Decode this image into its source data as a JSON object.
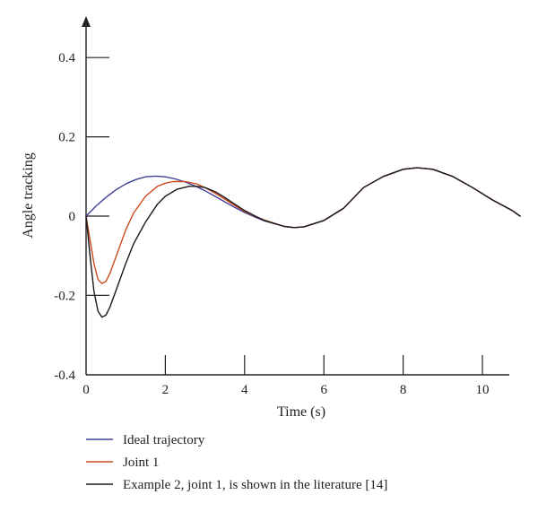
{
  "chart_data": {
    "type": "line",
    "xlabel": "Time (s)",
    "ylabel": "Angle tracking",
    "xlim": [
      0,
      11
    ],
    "ylim": [
      -0.4,
      0.45
    ],
    "x_ticks": [
      0,
      2,
      4,
      6,
      8,
      10
    ],
    "x_tick_labels": [
      "0",
      "2",
      "4",
      "6",
      "8",
      "10"
    ],
    "y_ticks": [
      -0.4,
      -0.2,
      0,
      0.2,
      0.4
    ],
    "y_tick_labels": [
      "-0.4",
      "-0.2",
      "0",
      "0.2",
      "0.4"
    ],
    "grid": false,
    "legend_position": "bottom",
    "series": [
      {
        "name": "Ideal trajectory",
        "color": "#3f3f9a",
        "x": [
          0,
          0.25,
          0.5,
          0.75,
          1.0,
          1.25,
          1.5,
          1.75,
          2.0,
          2.25,
          2.5,
          2.75,
          3.0,
          3.25,
          3.5,
          3.75,
          4.0,
          4.25,
          4.5,
          5.0,
          5.25,
          5.5,
          6.0,
          6.5,
          7.0,
          7.5,
          8.0,
          8.35,
          8.75,
          9.25,
          9.75,
          10.25,
          10.75,
          11.0
        ],
        "values": [
          0.0,
          0.025,
          0.047,
          0.066,
          0.081,
          0.092,
          0.099,
          0.101,
          0.099,
          0.094,
          0.086,
          0.076,
          0.064,
          0.05,
          0.036,
          0.022,
          0.009,
          -0.002,
          -0.012,
          -0.026,
          -0.029,
          -0.027,
          -0.011,
          0.02,
          0.072,
          0.1,
          0.118,
          0.122,
          0.118,
          0.1,
          0.072,
          0.041,
          0.014,
          0.0
        ]
      },
      {
        "name": "Joint 1",
        "color": "#cc4a1e",
        "x": [
          0,
          0.1,
          0.2,
          0.3,
          0.4,
          0.5,
          0.6,
          0.8,
          1.0,
          1.2,
          1.5,
          1.8,
          2.0,
          2.2,
          2.5,
          2.8,
          3.0,
          3.25,
          3.5,
          3.75,
          4.0,
          4.25,
          4.5,
          5.0,
          5.25,
          5.5,
          6.0,
          6.5,
          7.0,
          7.5,
          8.0,
          8.35,
          8.75,
          9.25,
          9.75,
          10.25,
          10.75,
          11.0
        ],
        "values": [
          0.0,
          -0.06,
          -0.12,
          -0.16,
          -0.17,
          -0.165,
          -0.145,
          -0.09,
          -0.035,
          0.008,
          0.05,
          0.075,
          0.083,
          0.087,
          0.087,
          0.081,
          0.072,
          0.058,
          0.043,
          0.027,
          0.012,
          0.0,
          -0.01,
          -0.026,
          -0.029,
          -0.027,
          -0.011,
          0.02,
          0.072,
          0.1,
          0.118,
          0.122,
          0.118,
          0.1,
          0.072,
          0.041,
          0.014,
          0.0
        ]
      },
      {
        "name": "Example 2, joint 1, is shown in the literature [14]",
        "color": "#1a1a1a",
        "x": [
          0,
          0.1,
          0.2,
          0.3,
          0.4,
          0.5,
          0.6,
          0.8,
          1.0,
          1.2,
          1.5,
          1.8,
          2.0,
          2.3,
          2.6,
          2.8,
          3.0,
          3.25,
          3.5,
          3.75,
          4.0,
          4.25,
          4.5,
          5.0,
          5.25,
          5.5,
          6.0,
          6.5,
          7.0,
          7.5,
          8.0,
          8.35,
          8.75,
          9.25,
          9.75,
          10.25,
          10.75,
          11.0
        ],
        "values": [
          0.0,
          -0.1,
          -0.19,
          -0.24,
          -0.255,
          -0.25,
          -0.23,
          -0.175,
          -0.12,
          -0.07,
          -0.015,
          0.03,
          0.05,
          0.068,
          0.075,
          0.075,
          0.072,
          0.062,
          0.047,
          0.03,
          0.014,
          0.001,
          -0.011,
          -0.026,
          -0.029,
          -0.027,
          -0.011,
          0.02,
          0.072,
          0.1,
          0.118,
          0.122,
          0.118,
          0.1,
          0.072,
          0.041,
          0.014,
          0.0
        ]
      }
    ]
  }
}
